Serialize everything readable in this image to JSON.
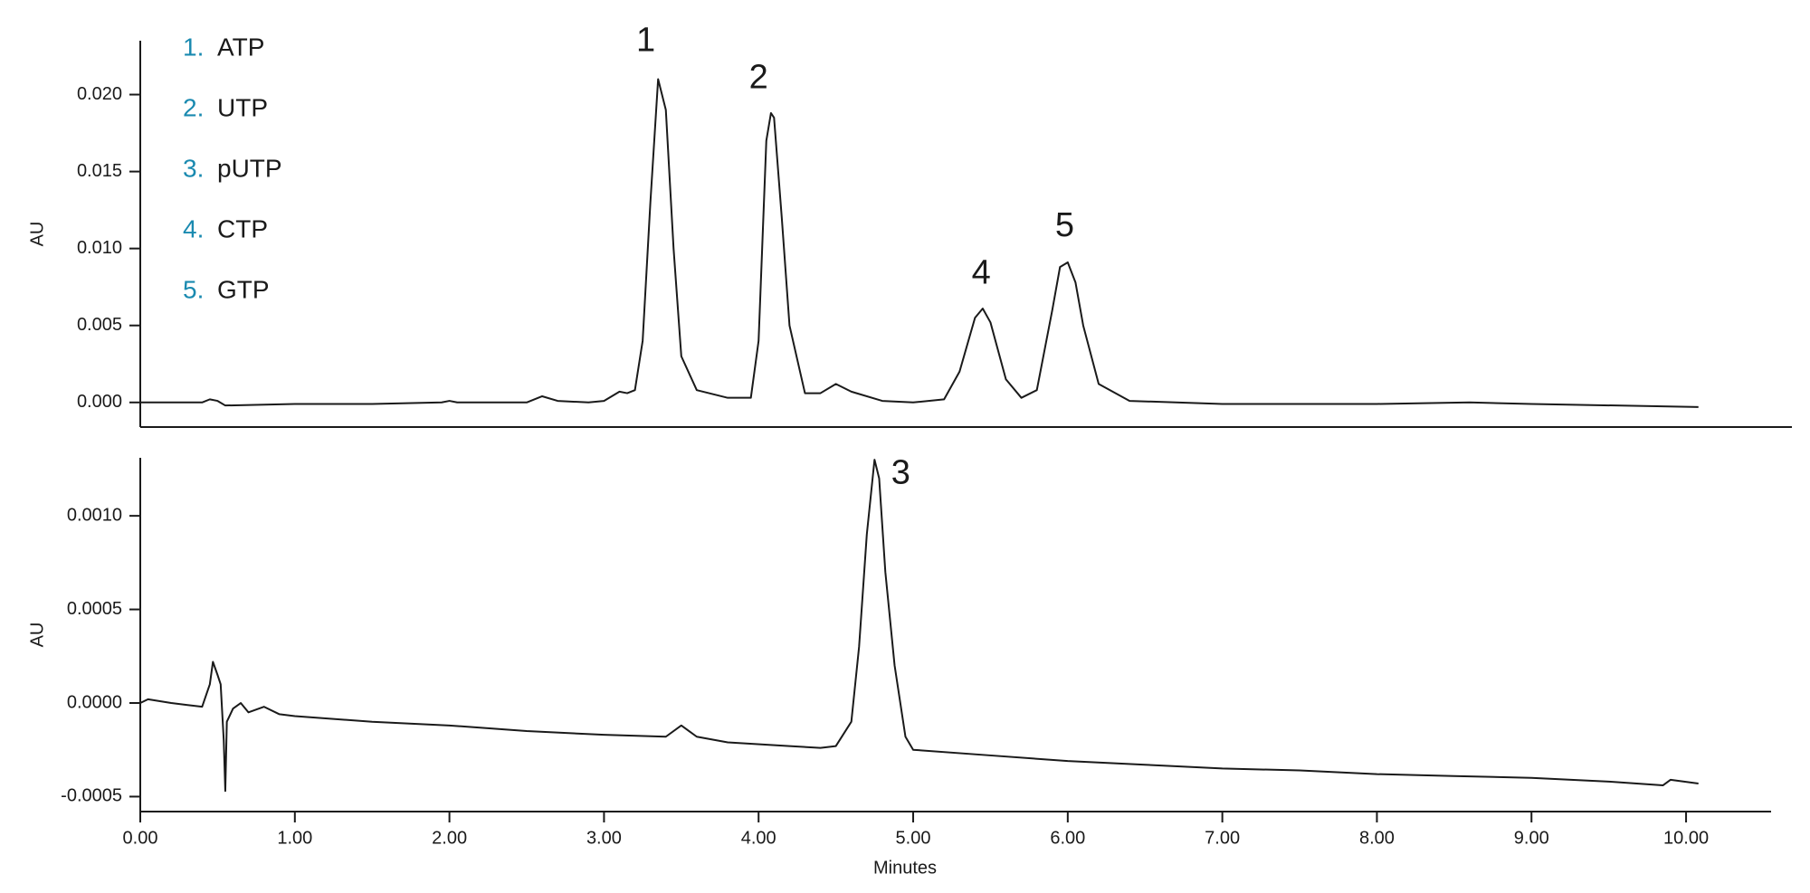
{
  "chart_data": [
    {
      "type": "line",
      "ylabel": "AU",
      "x": [
        0,
        0.4,
        0.45,
        0.5,
        0.55,
        1.0,
        1.5,
        1.95,
        2.0,
        2.05,
        2.5,
        2.6,
        2.7,
        2.9,
        3.0,
        3.1,
        3.15,
        3.2,
        3.25,
        3.3,
        3.35,
        3.4,
        3.45,
        3.5,
        3.6,
        3.8,
        3.95,
        4.0,
        4.05,
        4.08,
        4.1,
        4.15,
        4.2,
        4.3,
        4.4,
        4.5,
        4.6,
        4.8,
        5.0,
        5.2,
        5.3,
        5.4,
        5.45,
        5.5,
        5.6,
        5.7,
        5.8,
        5.9,
        5.95,
        6.0,
        6.05,
        6.1,
        6.2,
        6.4,
        7.0,
        8.0,
        8.6,
        9.0,
        10.08
      ],
      "series": [
        {
          "color": "#1a1a1a",
          "values": [
            0.0,
            0.0,
            0.0002,
            0.0001,
            -0.0002,
            -0.0001,
            -0.0001,
            0.0,
            0.0001,
            0.0,
            0.0,
            0.0004,
            0.0001,
            0.0,
            0.0001,
            0.0007,
            0.0006,
            0.0008,
            0.004,
            0.013,
            0.021,
            0.019,
            0.01,
            0.003,
            0.0008,
            0.0003,
            0.0003,
            0.004,
            0.017,
            0.0188,
            0.0185,
            0.012,
            0.005,
            0.0006,
            0.0006,
            0.0012,
            0.0007,
            0.0001,
            0.0,
            0.0002,
            0.002,
            0.0055,
            0.0061,
            0.0052,
            0.0015,
            0.0003,
            0.0008,
            0.006,
            0.0088,
            0.0091,
            0.0078,
            0.005,
            0.0012,
            0.0001,
            -0.0001,
            -0.0001,
            0.0,
            -0.0001,
            -0.0003
          ]
        }
      ],
      "xlim": [
        0,
        10.55
      ],
      "ylim": [
        -0.0016,
        0.0235
      ],
      "yticks": [
        {
          "value": 0,
          "label": "0.000"
        },
        {
          "value": 0.005,
          "label": "0.005"
        },
        {
          "value": 0.01,
          "label": "0.010"
        },
        {
          "value": 0.015,
          "label": "0.015"
        },
        {
          "value": 0.02,
          "label": "0.020"
        }
      ],
      "legend_number_color": "#1a8ab0",
      "legend": [
        {
          "number": "1.",
          "label": "ATP"
        },
        {
          "number": "2.",
          "label": "UTP"
        },
        {
          "number": "3.",
          "label": "pUTP"
        },
        {
          "number": "4.",
          "label": "CTP"
        },
        {
          "number": "5.",
          "label": "GTP"
        }
      ],
      "annotations": [
        {
          "text": "1",
          "x": 3.27,
          "y": 0.0234
        },
        {
          "text": "2",
          "x": 4.0,
          "y": 0.021
        },
        {
          "text": "4",
          "x": 5.44,
          "y": 0.0083
        },
        {
          "text": "5",
          "x": 5.98,
          "y": 0.0114
        }
      ]
    },
    {
      "type": "line",
      "ylabel": "AU",
      "xlabel": "Minutes",
      "x": [
        0,
        0.05,
        0.2,
        0.3,
        0.4,
        0.45,
        0.47,
        0.5,
        0.52,
        0.54,
        0.55,
        0.56,
        0.6,
        0.65,
        0.7,
        0.8,
        0.9,
        1.0,
        1.5,
        2.0,
        2.5,
        3.0,
        3.4,
        3.5,
        3.6,
        3.8,
        4.2,
        4.4,
        4.5,
        4.6,
        4.65,
        4.7,
        4.75,
        4.78,
        4.82,
        4.88,
        4.95,
        5.0,
        5.5,
        6.0,
        6.5,
        7.0,
        7.5,
        8.0,
        8.5,
        9.0,
        9.5,
        9.85,
        9.9,
        10.08
      ],
      "series": [
        {
          "color": "#1a1a1a",
          "values": [
            0.0,
            2e-05,
            0.0,
            -1e-05,
            -2e-05,
            0.0001,
            0.00022,
            0.00015,
            0.0001,
            -0.0002,
            -0.00047,
            -0.0001,
            -3e-05,
            0.0,
            -5e-05,
            -2e-05,
            -6e-05,
            -7e-05,
            -0.0001,
            -0.00012,
            -0.00015,
            -0.00017,
            -0.00018,
            -0.00012,
            -0.00018,
            -0.00021,
            -0.00023,
            -0.00024,
            -0.00023,
            -0.0001,
            0.0003,
            0.0009,
            0.0013,
            0.0012,
            0.0007,
            0.0002,
            -0.00018,
            -0.00025,
            -0.00028,
            -0.00031,
            -0.00033,
            -0.00035,
            -0.00036,
            -0.00038,
            -0.00039,
            -0.0004,
            -0.00042,
            -0.00044,
            -0.00041,
            -0.00043
          ]
        }
      ],
      "xlim": [
        0,
        10.55
      ],
      "ylim": [
        -0.00058,
        0.00131
      ],
      "xticks": [
        {
          "value": 0,
          "label": "0.00"
        },
        {
          "value": 1,
          "label": "1.00"
        },
        {
          "value": 2,
          "label": "2.00"
        },
        {
          "value": 3,
          "label": "3.00"
        },
        {
          "value": 4,
          "label": "4.00"
        },
        {
          "value": 5,
          "label": "5.00"
        },
        {
          "value": 6,
          "label": "6.00"
        },
        {
          "value": 7,
          "label": "7.00"
        },
        {
          "value": 8,
          "label": "8.00"
        },
        {
          "value": 9,
          "label": "9.00"
        },
        {
          "value": 10,
          "label": "10.00"
        }
      ],
      "yticks": [
        {
          "value": -0.0005,
          "label": "-0.0005"
        },
        {
          "value": 0,
          "label": "0.0000"
        },
        {
          "value": 0.0005,
          "label": "0.0005"
        },
        {
          "value": 0.001,
          "label": "0.0010"
        }
      ],
      "annotations": [
        {
          "text": "3",
          "x": 4.92,
          "y": 0.00122
        }
      ]
    }
  ]
}
